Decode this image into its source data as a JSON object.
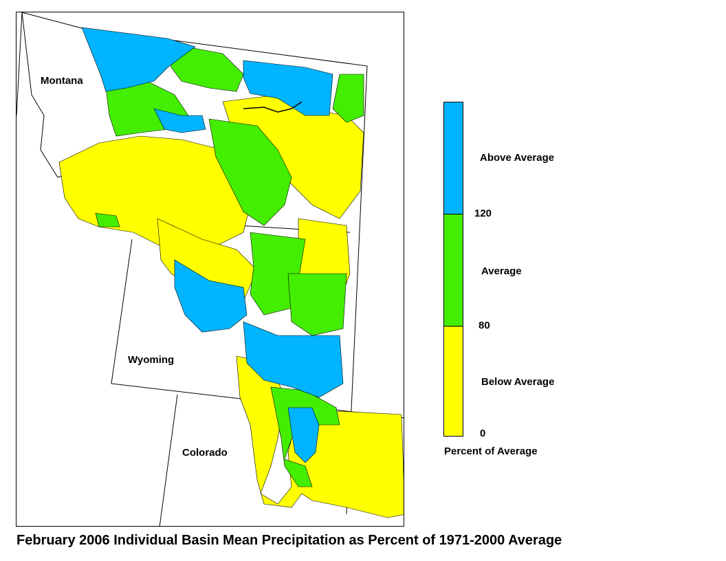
{
  "map": {
    "state_labels": {
      "montana": "Montana",
      "wyoming": "Wyoming",
      "colorado": "Colorado"
    }
  },
  "legend": {
    "colors": {
      "above": "#00b4ff",
      "average": "#44ee00",
      "below": "#ffff00"
    },
    "thresholds": {
      "top": 120,
      "mid": 80,
      "bottom": 0
    },
    "categories": {
      "above": "Above Average",
      "average": "Average",
      "below": "Below Average"
    },
    "title": "Percent of Average"
  },
  "caption": "February 2006 Individual Basin Mean Precipitation as Percent of 1971-2000 Average"
}
